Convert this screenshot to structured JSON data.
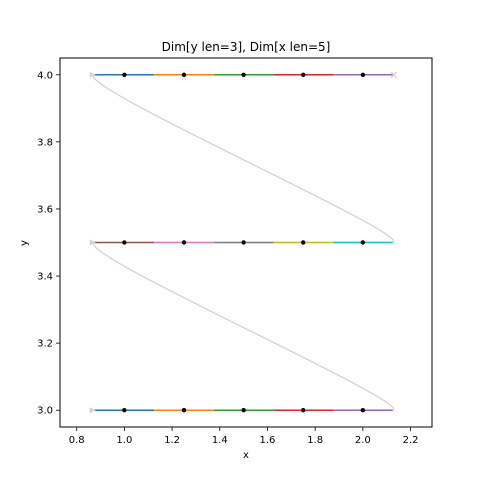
{
  "chart_data": {
    "type": "line",
    "title": "Dim[y len=3], Dim[x len=5]",
    "xlabel": "x",
    "ylabel": "y",
    "xlim": [
      0.73,
      2.29
    ],
    "ylim": [
      2.95,
      4.05
    ],
    "x_ticks": [
      "0.8",
      "1.0",
      "1.2",
      "1.4",
      "1.6",
      "1.8",
      "2.0",
      "2.2"
    ],
    "y_ticks": [
      "3.0",
      "3.2",
      "3.4",
      "3.6",
      "3.8",
      "4.0"
    ],
    "grid": false,
    "legend": "none",
    "points": [
      {
        "x": 1.0,
        "y": 4.0
      },
      {
        "x": 1.25,
        "y": 4.0
      },
      {
        "x": 1.5,
        "y": 4.0
      },
      {
        "x": 1.75,
        "y": 4.0
      },
      {
        "x": 2.0,
        "y": 4.0
      },
      {
        "x": 1.0,
        "y": 3.5
      },
      {
        "x": 1.25,
        "y": 3.5
      },
      {
        "x": 1.5,
        "y": 3.5
      },
      {
        "x": 1.75,
        "y": 3.5
      },
      {
        "x": 2.0,
        "y": 3.5
      },
      {
        "x": 1.0,
        "y": 3.0
      },
      {
        "x": 1.25,
        "y": 3.0
      },
      {
        "x": 1.5,
        "y": 3.0
      },
      {
        "x": 1.75,
        "y": 3.0
      },
      {
        "x": 2.0,
        "y": 3.0
      }
    ],
    "segments": [
      {
        "y": 4.0,
        "x0": 0.875,
        "x1": 1.125,
        "color": "#1f77b4"
      },
      {
        "y": 4.0,
        "x0": 1.125,
        "x1": 1.375,
        "color": "#ff7f0e"
      },
      {
        "y": 4.0,
        "x0": 1.375,
        "x1": 1.625,
        "color": "#2ca02c"
      },
      {
        "y": 4.0,
        "x0": 1.625,
        "x1": 1.875,
        "color": "#d62728"
      },
      {
        "y": 4.0,
        "x0": 1.875,
        "x1": 2.125,
        "color": "#9467bd"
      },
      {
        "y": 3.5,
        "x0": 0.875,
        "x1": 1.125,
        "color": "#8c564b"
      },
      {
        "y": 3.5,
        "x0": 1.125,
        "x1": 1.375,
        "color": "#e377c2"
      },
      {
        "y": 3.5,
        "x0": 1.375,
        "x1": 1.625,
        "color": "#7f7f7f"
      },
      {
        "y": 3.5,
        "x0": 1.625,
        "x1": 1.875,
        "color": "#bcbd22"
      },
      {
        "y": 3.5,
        "x0": 1.875,
        "x1": 2.125,
        "color": "#17becf"
      },
      {
        "y": 3.0,
        "x0": 0.875,
        "x1": 1.125,
        "color": "#1f77b4"
      },
      {
        "y": 3.0,
        "x0": 1.125,
        "x1": 1.375,
        "color": "#ff7f0e"
      },
      {
        "y": 3.0,
        "x0": 1.375,
        "x1": 1.625,
        "color": "#2ca02c"
      },
      {
        "y": 3.0,
        "x0": 1.625,
        "x1": 1.875,
        "color": "#d62728"
      },
      {
        "y": 3.0,
        "x0": 1.875,
        "x1": 2.125,
        "color": "#9467bd"
      }
    ],
    "path_curve": [
      {
        "x": 0.875,
        "y": 4.0
      },
      {
        "x": 0.78,
        "y": 3.97
      },
      {
        "x": 2.22,
        "y": 3.52
      },
      {
        "x": 2.125,
        "y": 3.5
      },
      {
        "x": 0.875,
        "y": 3.5
      },
      {
        "x": 0.78,
        "y": 3.47
      },
      {
        "x": 2.22,
        "y": 3.02
      },
      {
        "x": 2.125,
        "y": 3.0
      },
      {
        "x": 0.875,
        "y": 3.0
      }
    ],
    "path_color": "#d3d3d3",
    "start_markers": [
      {
        "x": 0.865,
        "y": 4.0
      },
      {
        "x": 0.865,
        "y": 3.5
      },
      {
        "x": 0.865,
        "y": 3.0
      }
    ],
    "end_marker": {
      "x": 2.13,
      "y": 4.0
    }
  }
}
